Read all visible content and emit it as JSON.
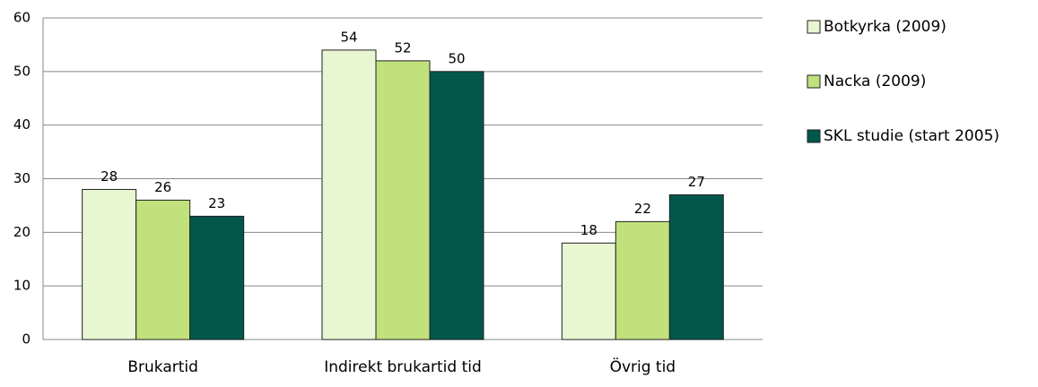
{
  "chart_data": {
    "type": "bar",
    "categories": [
      "Brukartid",
      "Indirekt brukartid tid",
      "Övrig tid"
    ],
    "series": [
      {
        "name": "Botkyrka  (2009)",
        "color": "#e8f6d2",
        "values": [
          28,
          54,
          18
        ]
      },
      {
        "name": "Nacka  (2009)",
        "color": "#c0e17b",
        "values": [
          26,
          52,
          22
        ]
      },
      {
        "name": "SKL studie (start 2005)",
        "color": "#00574a",
        "values": [
          23,
          50,
          27
        ]
      }
    ],
    "ylim": [
      0,
      60
    ],
    "yticks": [
      0,
      10,
      20,
      30,
      40,
      50,
      60
    ],
    "grid": true,
    "legend": "right"
  }
}
